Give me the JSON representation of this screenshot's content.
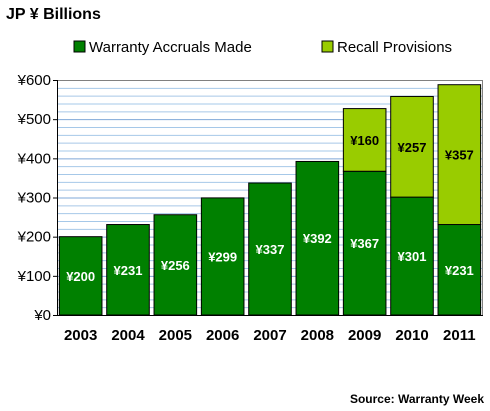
{
  "chart_data": {
    "type": "bar",
    "stacked": true,
    "title": "JP ¥ Billions",
    "categories": [
      "2003",
      "2004",
      "2005",
      "2006",
      "2007",
      "2008",
      "2009",
      "2010",
      "2011"
    ],
    "series": [
      {
        "name": "Warranty Accruals Made",
        "color": "#008000",
        "values": [
          200,
          231,
          256,
          299,
          337,
          392,
          367,
          301,
          231
        ],
        "labels": [
          "¥200",
          "¥231",
          "¥256",
          "¥299",
          "¥337",
          "¥392",
          "¥367",
          "¥301",
          "¥231"
        ]
      },
      {
        "name": "Recall Provisions",
        "color": "#99cc00",
        "values": [
          null,
          null,
          null,
          null,
          null,
          null,
          160,
          257,
          357
        ],
        "labels": [
          null,
          null,
          null,
          null,
          null,
          null,
          "¥160",
          "¥257",
          "¥357"
        ]
      }
    ],
    "ylim": [
      0,
      600
    ],
    "yticks": [
      0,
      100,
      200,
      300,
      400,
      500,
      600
    ],
    "ytick_labels": [
      "¥0",
      "¥100",
      "¥200",
      "¥300",
      "¥400",
      "¥500",
      "¥600"
    ],
    "grid": true,
    "legend": "top",
    "source": "Source: Warranty Week"
  }
}
